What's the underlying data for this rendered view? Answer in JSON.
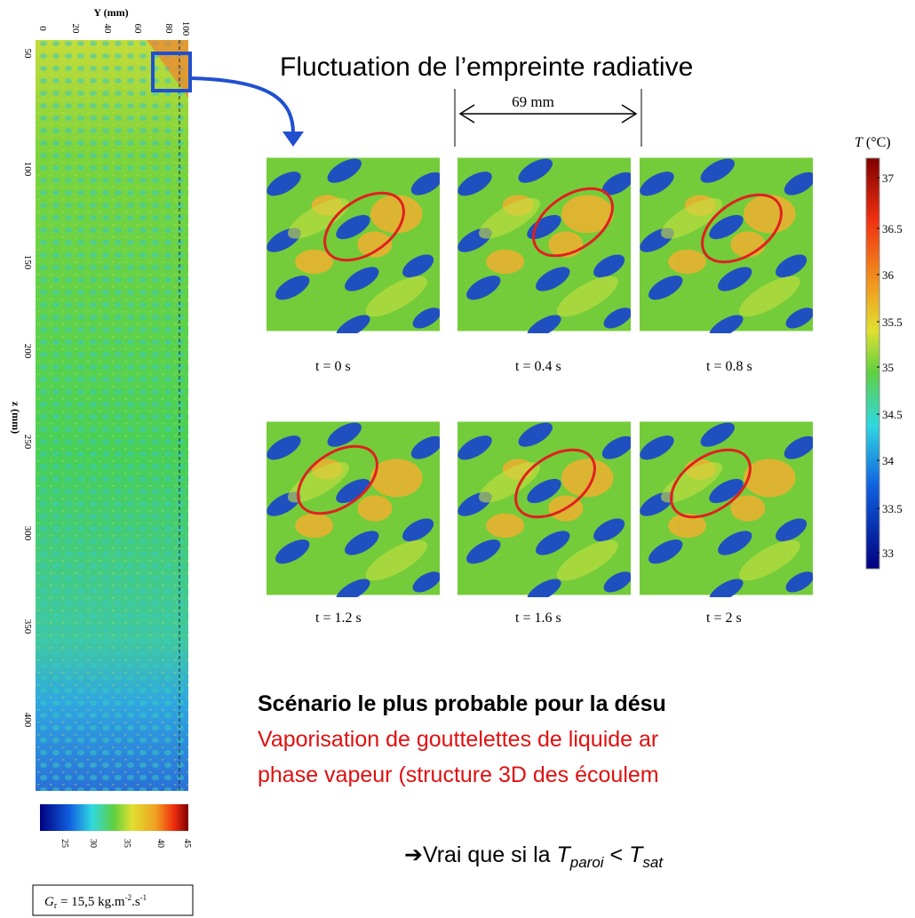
{
  "left_figure": {
    "y_axis_label": "Y (mm)",
    "y_ticks": [
      0,
      20,
      40,
      60,
      80,
      100
    ],
    "z_axis_label": "z (mm)",
    "z_ticks": [
      50,
      100,
      150,
      200,
      250,
      300,
      350,
      400
    ],
    "colorbar_ticks": [
      25,
      30,
      35,
      40,
      45
    ],
    "caption": {
      "symbol": "G",
      "subscript": "r",
      "value": " = 15,5 kg.m",
      "exp1": "-2",
      "unit2": ".s",
      "exp2": "-1"
    }
  },
  "title": "Fluctuation de l’empreinte radiative",
  "scale_label": "69 mm",
  "colorbar": {
    "title_symbol": "T",
    "title_unit": " (°C)",
    "ticks": [
      37,
      36.5,
      36,
      35.5,
      35,
      34.5,
      34,
      33.5,
      33
    ]
  },
  "panels": [
    "t = 0 s",
    "t = 0.4 s",
    "t = 0.8 s",
    "t = 1.2 s",
    "t = 1.6 s",
    "t = 2 s"
  ],
  "scenario": {
    "heading": "Scénario le plus probable pour la désu",
    "lines": [
      "Vaporisation de gouttelettes de liquide ar",
      "phase vapeur (structure 3D des écoulem"
    ]
  },
  "conclusion": {
    "prefix": "➔Vrai que si la ",
    "t1": "T",
    "sub1": "paroi",
    "op": " < ",
    "t2": "T",
    "sub2": "sat"
  }
}
